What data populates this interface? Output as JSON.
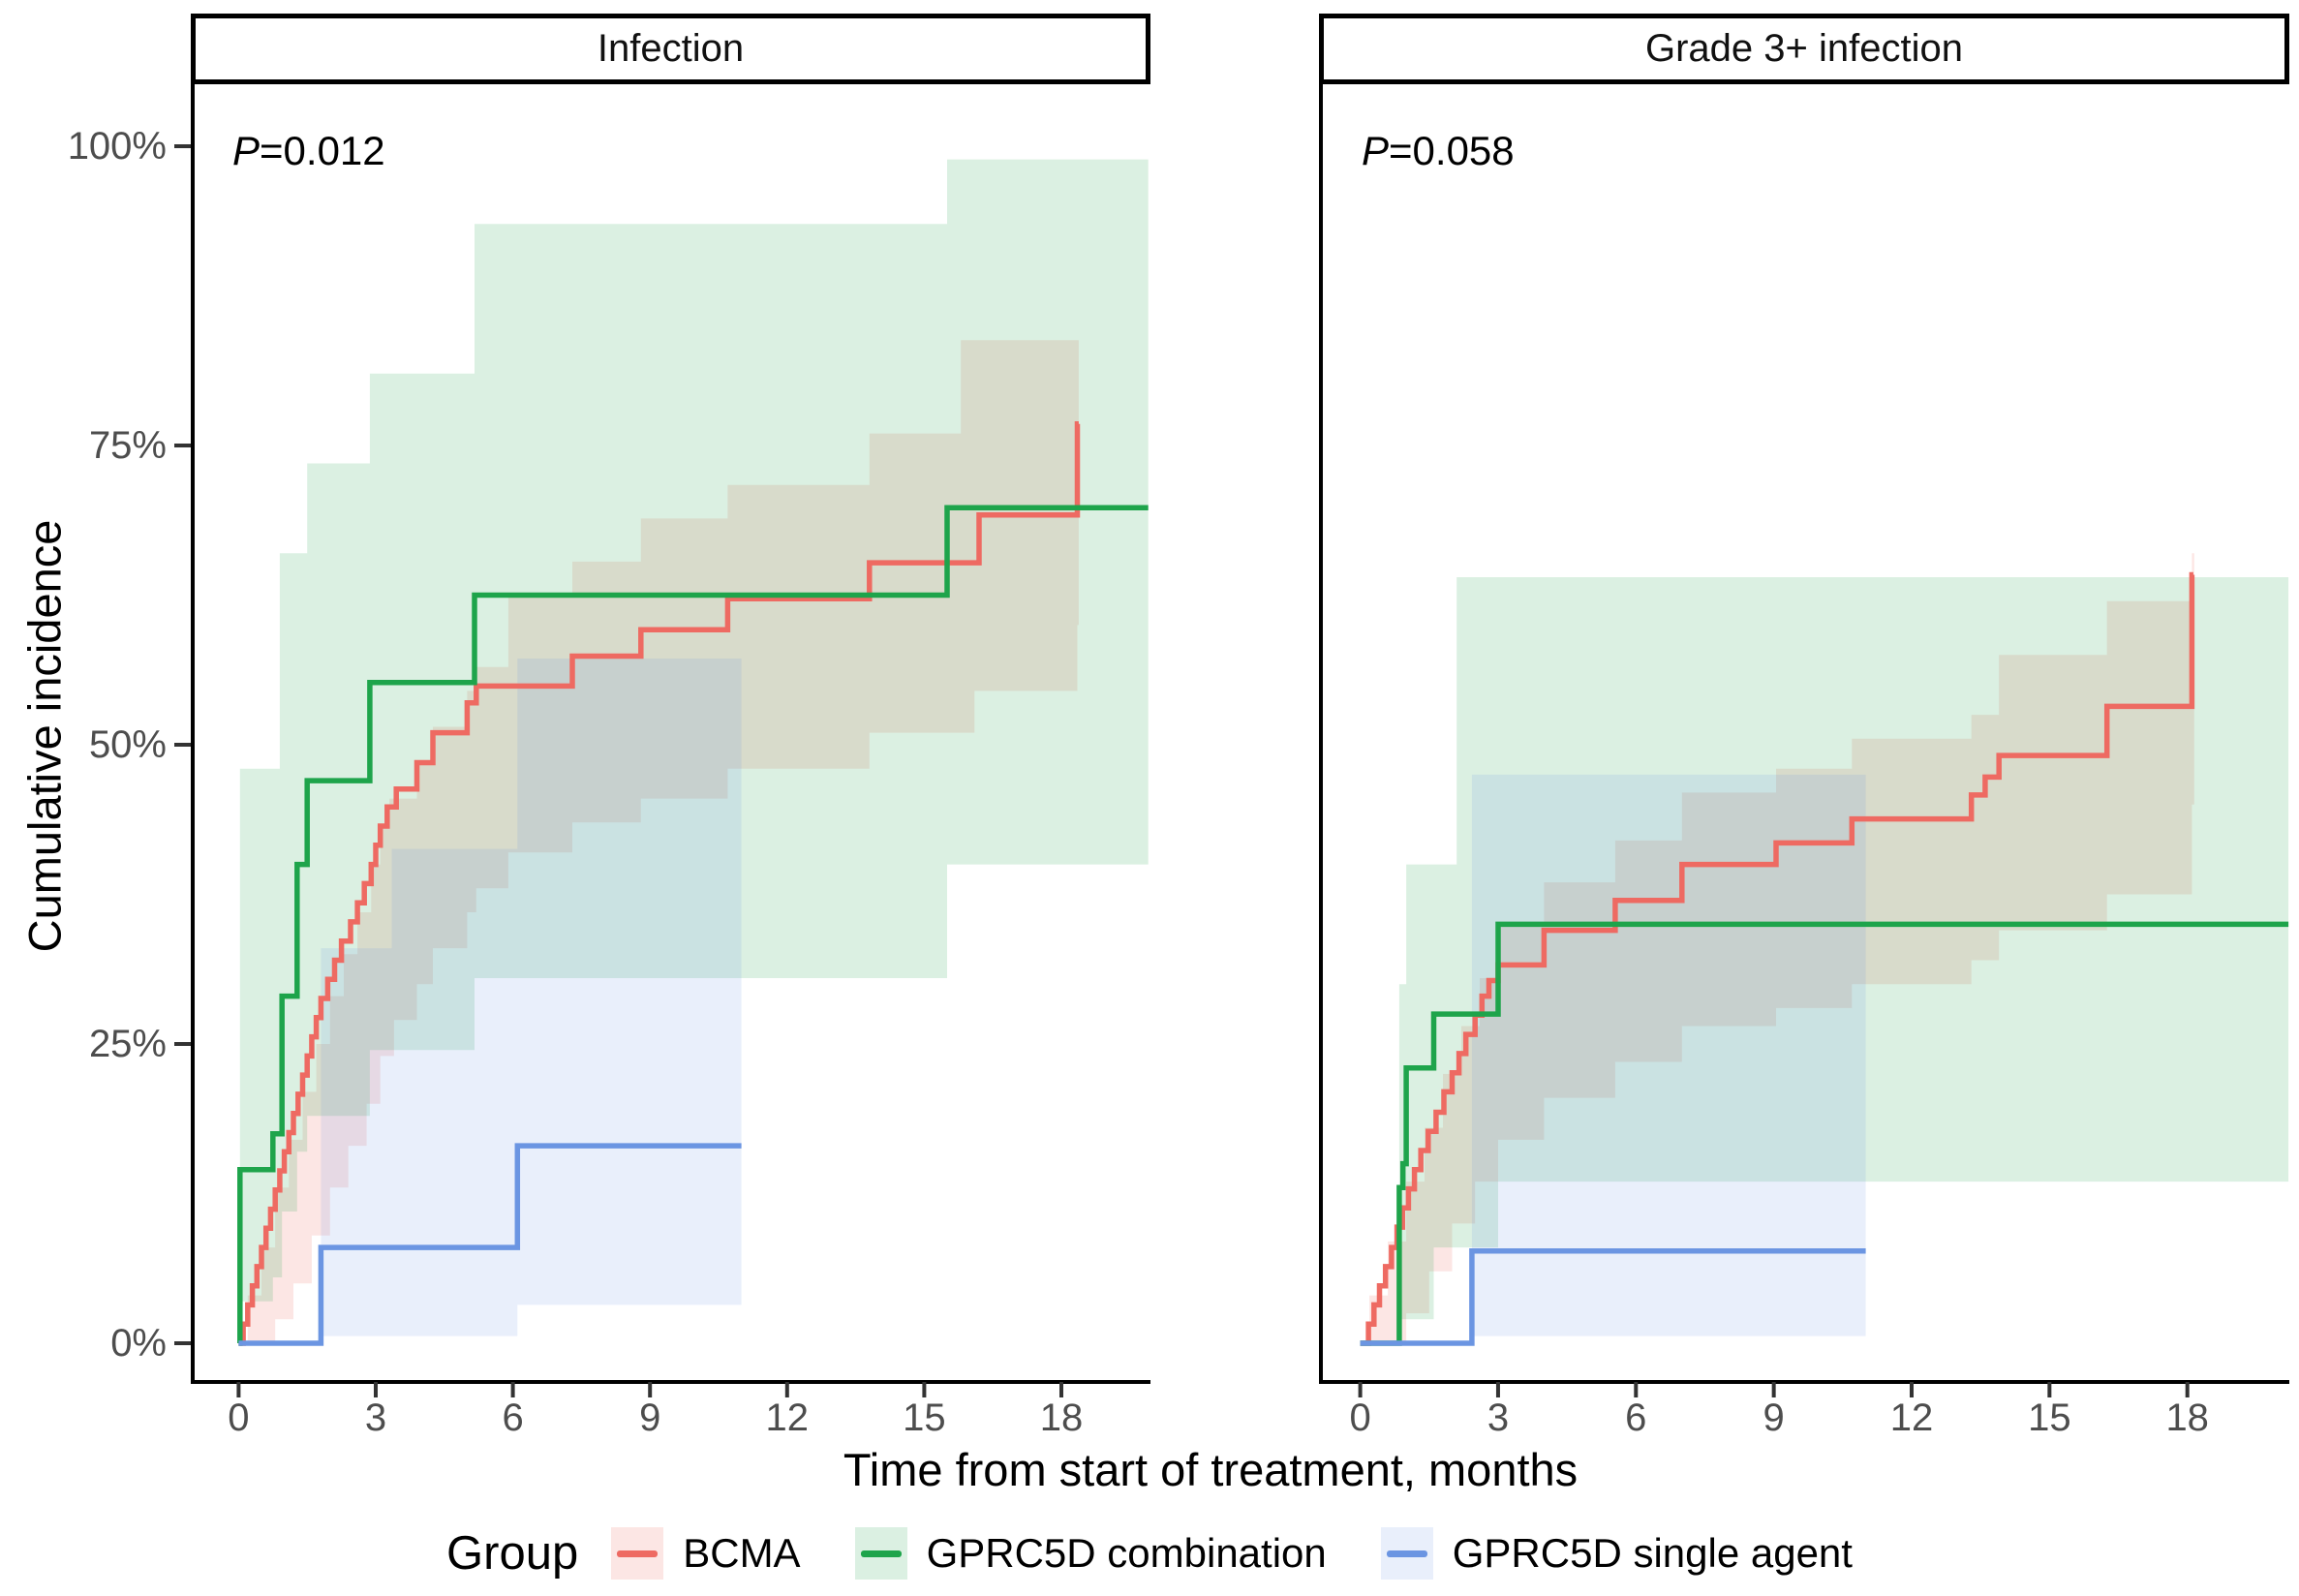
{
  "y_axis": {
    "title": "Cumulative incidence",
    "ticks": [
      {
        "label": "100%",
        "value": 100
      },
      {
        "label": "75%",
        "value": 75
      },
      {
        "label": "50%",
        "value": 50
      },
      {
        "label": "25%",
        "value": 25
      },
      {
        "label": "0%",
        "value": 0
      }
    ]
  },
  "x_axis": {
    "title": "Time from start of treatment, months",
    "ticks": [
      0,
      3,
      6,
      9,
      12,
      15,
      18
    ]
  },
  "legend": {
    "title": "Group",
    "items": [
      {
        "label": "BCMA",
        "color": "#ee6a62",
        "band": "rgba(238,106,95,0.17)"
      },
      {
        "label": "GPRC5D combination",
        "color": "#1ea44b",
        "band": "rgba(30,164,75,0.16)"
      },
      {
        "label": "GPRC5D single agent",
        "color": "#6b95e2",
        "band": "rgba(107,149,226,0.15)"
      }
    ]
  },
  "chart_data": [
    {
      "type": "line",
      "panel": "Infection",
      "p_label": "P",
      "p_value": "=0.012",
      "xlabel": "Time from start of treatment, months",
      "ylabel": "Cumulative incidence",
      "xlim": [
        -1,
        20
      ],
      "ylim": [
        0,
        105
      ],
      "grid": false,
      "series": [
        {
          "name": "BCMA",
          "steps": [
            [
              0,
              0
            ],
            [
              0.1,
              1.6
            ],
            [
              0.2,
              3.2
            ],
            [
              0.3,
              4.8
            ],
            [
              0.4,
              6.4
            ],
            [
              0.5,
              8.0
            ],
            [
              0.6,
              9.6
            ],
            [
              0.7,
              11.2
            ],
            [
              0.8,
              12.8
            ],
            [
              0.9,
              14.4
            ],
            [
              1.0,
              16.0
            ],
            [
              1.1,
              17.6
            ],
            [
              1.2,
              19.2
            ],
            [
              1.3,
              20.8
            ],
            [
              1.4,
              22.4
            ],
            [
              1.5,
              24.0
            ],
            [
              1.6,
              25.6
            ],
            [
              1.7,
              27.2
            ],
            [
              1.8,
              28.8
            ],
            [
              1.95,
              30.4
            ],
            [
              2.1,
              32.0
            ],
            [
              2.25,
              33.6
            ],
            [
              2.45,
              35.2
            ],
            [
              2.6,
              36.8
            ],
            [
              2.75,
              38.4
            ],
            [
              2.9,
              40.0
            ],
            [
              3.0,
              41.6
            ],
            [
              3.1,
              43.2
            ],
            [
              3.25,
              44.8
            ],
            [
              3.45,
              46.3
            ],
            [
              3.9,
              48.5
            ],
            [
              4.25,
              51.0
            ],
            [
              5.0,
              53.5
            ],
            [
              5.2,
              54.9
            ],
            [
              7.3,
              57.4
            ],
            [
              8.8,
              59.6
            ],
            [
              10.7,
              62.2
            ],
            [
              13.8,
              65.2
            ],
            [
              16.2,
              69.2
            ],
            [
              18.35,
              76.8
            ]
          ],
          "end": 18.38,
          "ci_upper": [
            [
              0.2,
              4
            ],
            [
              0.5,
              8
            ],
            [
              0.8,
              13
            ],
            [
              1.1,
              17
            ],
            [
              1.4,
              21
            ],
            [
              1.7,
              25
            ],
            [
              2.0,
              29
            ],
            [
              2.3,
              32.5
            ],
            [
              2.6,
              36
            ],
            [
              2.9,
              40
            ],
            [
              3.1,
              43
            ],
            [
              3.3,
              45.5
            ],
            [
              3.9,
              48.5
            ],
            [
              4.25,
              51.5
            ],
            [
              5.0,
              54.5
            ],
            [
              5.2,
              56.5
            ],
            [
              5.9,
              62.4
            ],
            [
              7.3,
              65.3
            ],
            [
              8.8,
              68.9
            ],
            [
              10.7,
              71.7
            ],
            [
              13.8,
              76
            ],
            [
              15.8,
              83.8
            ]
          ],
          "ci_lower": [
            [
              0.2,
              0
            ],
            [
              0.8,
              2
            ],
            [
              1.2,
              5
            ],
            [
              1.6,
              9
            ],
            [
              2.0,
              13
            ],
            [
              2.4,
              16.5
            ],
            [
              2.8,
              20
            ],
            [
              3.1,
              24
            ],
            [
              3.4,
              27
            ],
            [
              3.9,
              30
            ],
            [
              4.25,
              33
            ],
            [
              5.0,
              36
            ],
            [
              5.2,
              38
            ],
            [
              5.9,
              41
            ],
            [
              7.3,
              43.5
            ],
            [
              8.8,
              45.5
            ],
            [
              10.7,
              48
            ],
            [
              13.8,
              51
            ],
            [
              16.1,
              54.5
            ],
            [
              18.35,
              60
            ]
          ],
          "ci_end": 18.38
        },
        {
          "name": "GPRC5D combination",
          "steps": [
            [
              0,
              0
            ],
            [
              0.03,
              14.5
            ],
            [
              0.75,
              17.5
            ],
            [
              0.95,
              29.0
            ],
            [
              1.28,
              40.0
            ],
            [
              1.5,
              47.0
            ],
            [
              2.87,
              55.2
            ],
            [
              5.16,
              62.5
            ],
            [
              15.5,
              69.8
            ]
          ],
          "end": 19.9,
          "ci_upper": [
            [
              0.03,
              48
            ],
            [
              0.9,
              66
            ],
            [
              1.5,
              73.5
            ],
            [
              2.87,
              81
            ],
            [
              5.16,
              93.5
            ],
            [
              15.5,
              98.9
            ]
          ],
          "ci_lower": [
            [
              0.03,
              3.5
            ],
            [
              0.75,
              5.5
            ],
            [
              0.95,
              11
            ],
            [
              1.28,
              16
            ],
            [
              1.5,
              19
            ],
            [
              2.87,
              24.5
            ],
            [
              5.16,
              30.5
            ],
            [
              15.5,
              40
            ]
          ],
          "ci_end": 19.9
        },
        {
          "name": "GPRC5D single agent",
          "steps": [
            [
              0,
              0
            ],
            [
              1.8,
              8.0
            ],
            [
              6.1,
              16.5
            ]
          ],
          "end": 11.0,
          "ci_upper": [
            [
              1.8,
              33
            ],
            [
              3.35,
              41.3
            ],
            [
              6.1,
              57.2
            ]
          ],
          "ci_lower": [
            [
              1.8,
              0.6
            ],
            [
              6.1,
              3.2
            ]
          ],
          "ci_end": 11.0
        }
      ]
    },
    {
      "type": "line",
      "panel": "Grade 3+ infection",
      "p_label": "P",
      "p_value": "=0.058",
      "xlabel": "Time from start of treatment, months",
      "ylabel": "Cumulative incidence",
      "xlim": [
        -1,
        20
      ],
      "ylim": [
        0,
        105
      ],
      "grid": false,
      "series": [
        {
          "name": "BCMA",
          "steps": [
            [
              0,
              0
            ],
            [
              0.18,
              1.6
            ],
            [
              0.3,
              3.2
            ],
            [
              0.42,
              4.8
            ],
            [
              0.55,
              6.4
            ],
            [
              0.68,
              8.0
            ],
            [
              0.8,
              9.7
            ],
            [
              0.92,
              11.3
            ],
            [
              1.05,
              12.9
            ],
            [
              1.18,
              14.5
            ],
            [
              1.32,
              16.1
            ],
            [
              1.48,
              17.7
            ],
            [
              1.65,
              19.3
            ],
            [
              1.82,
              21.0
            ],
            [
              2.0,
              22.6
            ],
            [
              2.15,
              24.2
            ],
            [
              2.3,
              25.8
            ],
            [
              2.5,
              27.4
            ],
            [
              2.65,
              29.0
            ],
            [
              2.8,
              30.3
            ],
            [
              3.0,
              31.6
            ],
            [
              4.0,
              34.5
            ],
            [
              5.55,
              37.0
            ],
            [
              7.0,
              40.0
            ],
            [
              9.05,
              41.8
            ],
            [
              10.7,
              43.8
            ],
            [
              13.3,
              45.8
            ],
            [
              13.6,
              47.3
            ],
            [
              13.9,
              49.1
            ],
            [
              16.25,
              53.2
            ],
            [
              18.1,
              64.2
            ]
          ],
          "end": 18.13,
          "ci_upper": [
            [
              0.2,
              4
            ],
            [
              0.6,
              8.5
            ],
            [
              1.0,
              13.5
            ],
            [
              1.4,
              18
            ],
            [
              1.8,
              22.5
            ],
            [
              2.2,
              26.5
            ],
            [
              2.6,
              30.5
            ],
            [
              3.0,
              35
            ],
            [
              4.0,
              38.5
            ],
            [
              5.55,
              42
            ],
            [
              7.0,
              46
            ],
            [
              9.05,
              48
            ],
            [
              10.7,
              50.5
            ],
            [
              13.3,
              52.5
            ],
            [
              13.9,
              57.5
            ],
            [
              16.25,
              62
            ],
            [
              18.1,
              66
            ]
          ],
          "ci_lower": [
            [
              0.2,
              0
            ],
            [
              1.0,
              2.5
            ],
            [
              1.5,
              6
            ],
            [
              2.0,
              10
            ],
            [
              2.5,
              13.5
            ],
            [
              3.0,
              17
            ],
            [
              4.0,
              20.5
            ],
            [
              5.55,
              23.5
            ],
            [
              7.0,
              26.5
            ],
            [
              9.05,
              28
            ],
            [
              10.7,
              30
            ],
            [
              13.3,
              32
            ],
            [
              13.9,
              34.5
            ],
            [
              16.25,
              37.5
            ],
            [
              18.1,
              45
            ]
          ],
          "ci_end": 18.15
        },
        {
          "name": "GPRC5D combination",
          "steps": [
            [
              0,
              0
            ],
            [
              0.85,
              13.0
            ],
            [
              0.93,
              15.0
            ],
            [
              1.0,
              23.0
            ],
            [
              1.6,
              27.5
            ],
            [
              3.0,
              35.0
            ]
          ],
          "end": 20.2,
          "ci_upper": [
            [
              0.85,
              30
            ],
            [
              1.0,
              40
            ],
            [
              2.1,
              64
            ]
          ],
          "ci_lower": [
            [
              0.85,
              2
            ],
            [
              1.6,
              8
            ],
            [
              3.0,
              13.5
            ]
          ],
          "ci_end": 20.2
        },
        {
          "name": "GPRC5D single agent",
          "steps": [
            [
              0,
              0
            ],
            [
              2.43,
              7.7
            ]
          ],
          "end": 11.0,
          "ci_upper": [
            [
              2.43,
              47.5
            ]
          ],
          "ci_lower": [
            [
              2.43,
              0.6
            ]
          ],
          "ci_end": 11.0
        }
      ]
    }
  ]
}
